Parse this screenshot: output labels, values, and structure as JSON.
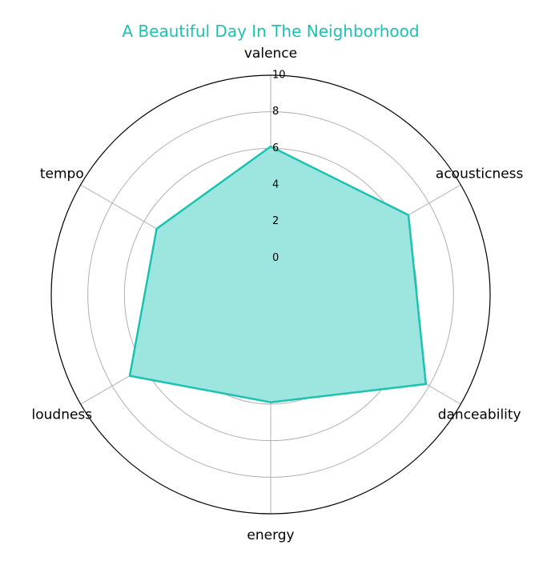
{
  "chart_data": {
    "type": "radar",
    "title": "A Beautiful Day In The Neighborhood",
    "categories": [
      "valence",
      "acousticness",
      "danceability",
      "energy",
      "loudness",
      "tempo"
    ],
    "series": [
      {
        "values": [
          6.1,
          6.7,
          7.8,
          3.9,
          6.9,
          5.2
        ]
      }
    ],
    "r_ticks": [
      "0",
      "2",
      "4",
      "6",
      "8",
      "10"
    ],
    "rlim": [
      -2,
      10
    ],
    "grid": true,
    "colors": {
      "title": "#1cc2b1",
      "line": "#1cc2b1",
      "fill": "#9de6e0",
      "grid": "#b0b0b0",
      "outline": "#000000"
    }
  }
}
